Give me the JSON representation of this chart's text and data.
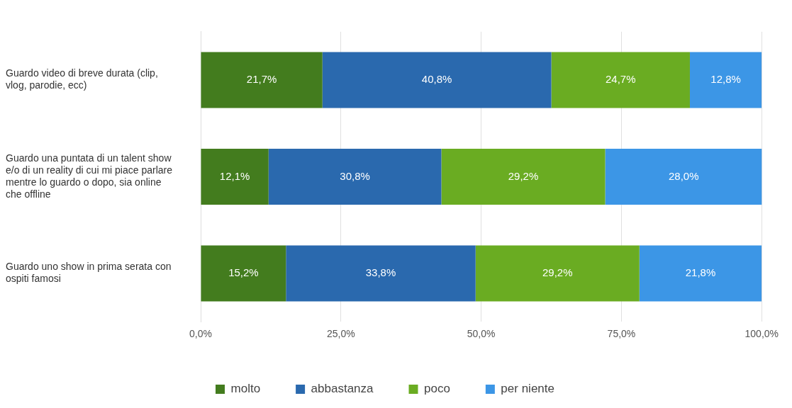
{
  "chart_data": {
    "type": "bar",
    "orientation": "horizontal",
    "stacked": true,
    "categories": [
      "Guardo video di breve durata (clip, vlog, parodie, ecc)",
      "Guardo una puntata di un talent show e/o di un reality di cui mi piace parlare mentre lo guardo o dopo, sia online che offline",
      "Guardo uno show in prima serata con ospiti famosi"
    ],
    "series": [
      {
        "name": "molto",
        "color": "#437c1e",
        "values": [
          21.7,
          12.1,
          15.2
        ],
        "value_labels": [
          "21,7%",
          "12,1%",
          "15,2%"
        ]
      },
      {
        "name": "abbastanza",
        "color": "#2a69ae",
        "values": [
          40.8,
          30.8,
          33.8
        ],
        "value_labels": [
          "40,8%",
          "30,8%",
          "33,8%"
        ]
      },
      {
        "name": "poco",
        "color": "#6aac22",
        "values": [
          24.7,
          29.2,
          29.2
        ],
        "value_labels": [
          "24,7%",
          "29,2%",
          "29,2%"
        ]
      },
      {
        "name": "per niente",
        "color": "#3c96e6",
        "values": [
          12.8,
          28.0,
          21.8
        ],
        "value_labels": [
          "12,8%",
          "28,0%",
          "21,8%"
        ]
      }
    ],
    "xlim": [
      0,
      100
    ],
    "xticks": [
      {
        "value": 0,
        "label": "0,0%"
      },
      {
        "value": 25,
        "label": "25,0%"
      },
      {
        "value": 50,
        "label": "50,0%"
      },
      {
        "value": 75,
        "label": "75,0%"
      },
      {
        "value": 100,
        "label": "100,0%"
      }
    ],
    "grid": "x",
    "legend": "bottom"
  }
}
